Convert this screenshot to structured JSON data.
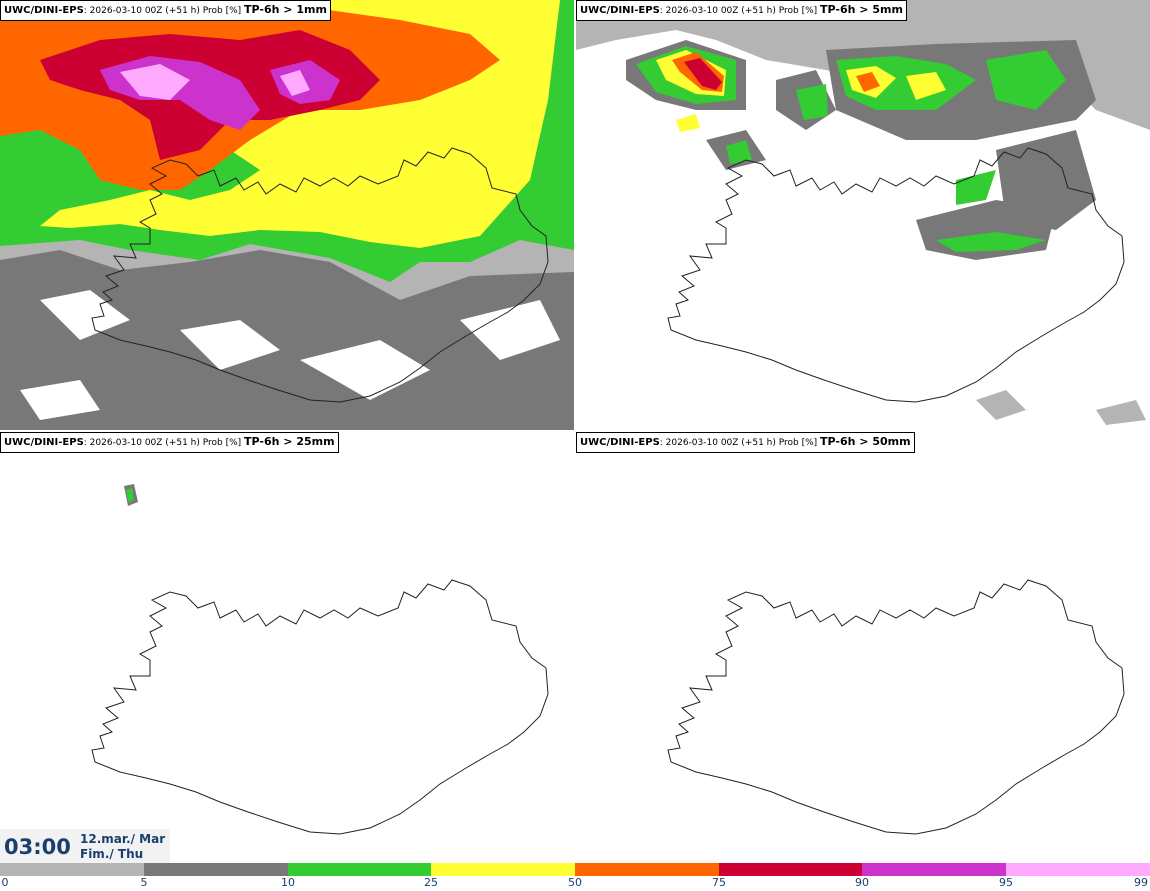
{
  "panels": [
    {
      "model": "UWC/DINI-EPS",
      "meta": ": 2026-03-10 00Z (+51 h) Prob [%] ",
      "threshold": "TP-6h > 1mm"
    },
    {
      "model": "UWC/DINI-EPS",
      "meta": ": 2026-03-10 00Z (+51 h) Prob [%] ",
      "threshold": "TP-6h > 5mm"
    },
    {
      "model": "UWC/DINI-EPS",
      "meta": ": 2026-03-10 00Z (+51 h) Prob [%] ",
      "threshold": "TP-6h > 25mm"
    },
    {
      "model": "UWC/DINI-EPS",
      "meta": ": 2026-03-10 00Z (+51 h) Prob [%] ",
      "threshold": "TP-6h > 50mm"
    }
  ],
  "valid_time": {
    "time": "03:00",
    "date": "12.mar./ Mar",
    "weekday": "Fim./ Thu"
  },
  "colorbar": {
    "ticks": [
      "0",
      "5",
      "10",
      "25",
      "50",
      "75",
      "90",
      "95",
      "99"
    ],
    "colors": [
      "#ffffff",
      "#b4b4b4",
      "#787878",
      "#33cc33",
      "#ffff33",
      "#ff6600",
      "#cc0033",
      "#cc33cc",
      "#ffaaff"
    ]
  }
}
